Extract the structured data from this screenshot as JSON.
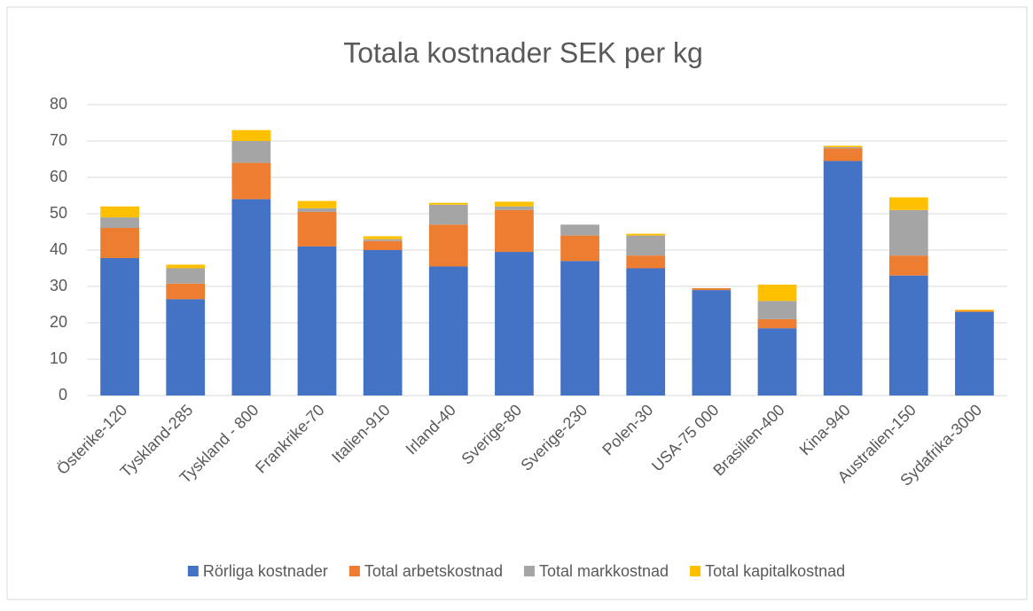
{
  "chart_data": {
    "type": "stacked_bar",
    "title": "Totala kostnader SEK per kg",
    "categories": [
      "Österike-120",
      "Tyskland-285",
      "Tyskland - 800",
      "Frankrike-70",
      "Italien-910",
      "Irland-40",
      "Sverige-80",
      "Sverige-230",
      "Polen-30",
      "USA-75 000",
      "Brasilien-400",
      "Kina-940",
      "Australien-150",
      "Sydafrika-3000"
    ],
    "series": [
      {
        "name": "Rörliga kostnader",
        "color": "#4472c4",
        "values": [
          37.8,
          26.5,
          54,
          41,
          40,
          35.5,
          39.5,
          37,
          35,
          29,
          18.5,
          64.5,
          33,
          23
        ]
      },
      {
        "name": "Total arbetskostnad",
        "color": "#ed7d31",
        "values": [
          8.3,
          4.3,
          10,
          9.5,
          2.5,
          11.5,
          11.5,
          7,
          3.5,
          0.5,
          2.5,
          3.5,
          5.5,
          0.3
        ]
      },
      {
        "name": "Total markkostnad",
        "color": "#a5a5a5",
        "values": [
          2.9,
          4.2,
          6,
          1,
          0.5,
          5.5,
          1,
          3,
          5.5,
          0,
          5,
          0.3,
          12.5,
          0
        ]
      },
      {
        "name": "Total kapitalkostnad",
        "color": "#ffc000",
        "values": [
          3,
          1,
          3,
          2,
          0.8,
          0.5,
          1.3,
          0,
          0.5,
          0,
          4.5,
          0.4,
          3.5,
          0.3
        ]
      }
    ],
    "ylim": [
      0,
      80
    ],
    "yticks": [
      0,
      10,
      20,
      30,
      40,
      50,
      60,
      70,
      80
    ],
    "grid": true,
    "legend": "bottom"
  }
}
